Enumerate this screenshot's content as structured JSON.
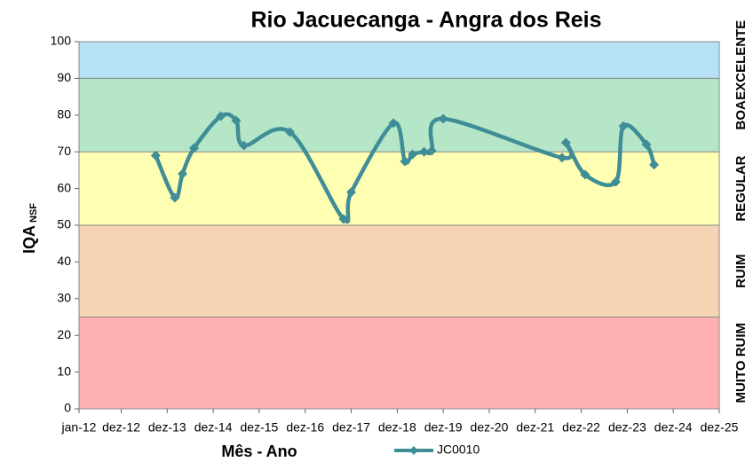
{
  "chart_data": {
    "type": "line",
    "title": "Rio Jacuecanga - Angra dos Reis",
    "x_label": "Mês - Ano",
    "y_label": "IQA",
    "y_label_sub": "NSF",
    "xlim": [
      "2012-01",
      "2025-12"
    ],
    "xticks": [
      {
        "value": "2012-01",
        "label": "jan-12"
      },
      {
        "value": "2012-12",
        "label": "dez-12"
      },
      {
        "value": "2013-12",
        "label": "dez-13"
      },
      {
        "value": "2014-12",
        "label": "dez-14"
      },
      {
        "value": "2015-12",
        "label": "dez-15"
      },
      {
        "value": "2016-12",
        "label": "dez-16"
      },
      {
        "value": "2017-12",
        "label": "dez-17"
      },
      {
        "value": "2018-12",
        "label": "dez-18"
      },
      {
        "value": "2019-12",
        "label": "dez-19"
      },
      {
        "value": "2020-12",
        "label": "dez-20"
      },
      {
        "value": "2021-12",
        "label": "dez-21"
      },
      {
        "value": "2022-12",
        "label": "dez-22"
      },
      {
        "value": "2023-12",
        "label": "dez-23"
      },
      {
        "value": "2024-12",
        "label": "dez-24"
      },
      {
        "value": "2025-12",
        "label": "dez-25"
      }
    ],
    "ylim": [
      0,
      100
    ],
    "yticks": [
      0,
      10,
      20,
      30,
      40,
      50,
      60,
      70,
      80,
      90,
      100
    ],
    "bands": [
      {
        "label": "MUITO RUIM",
        "from": 0,
        "to": 25,
        "color": "#ffb1b1"
      },
      {
        "label": "RUIM",
        "from": 25,
        "to": 50,
        "color": "#f5d4b4"
      },
      {
        "label": "REGULAR",
        "from": 50,
        "to": 70,
        "color": "#ffffb3"
      },
      {
        "label": "BOA",
        "from": 70,
        "to": 90,
        "color": "#b5e6c7"
      },
      {
        "label": "EXCELENTE",
        "from": 90,
        "to": 100,
        "color": "#b5e3f5"
      }
    ],
    "x": [
      "2013-09",
      "2014-02",
      "2014-04",
      "2014-07",
      "2015-02",
      "2015-06",
      "2015-08",
      "2016-08",
      "2017-10",
      "2017-12",
      "2018-11",
      "2019-02",
      "2019-04",
      "2019-07",
      "2019-09",
      "2019-12",
      "2022-07",
      "2022-08",
      "2023-01",
      "2023-09",
      "2023-11",
      "2024-05",
      "2024-07"
    ],
    "series": [
      {
        "name": "JC0010",
        "color": "#3f8d96",
        "values": [
          69,
          57.5,
          64,
          71,
          79.7,
          78.5,
          71.7,
          75.4,
          51.7,
          59,
          77.8,
          67.4,
          69.3,
          70,
          70.3,
          79,
          68.4,
          72.5,
          63.8,
          61.8,
          77,
          72,
          66.5
        ]
      }
    ],
    "legend_position": "bottom"
  }
}
